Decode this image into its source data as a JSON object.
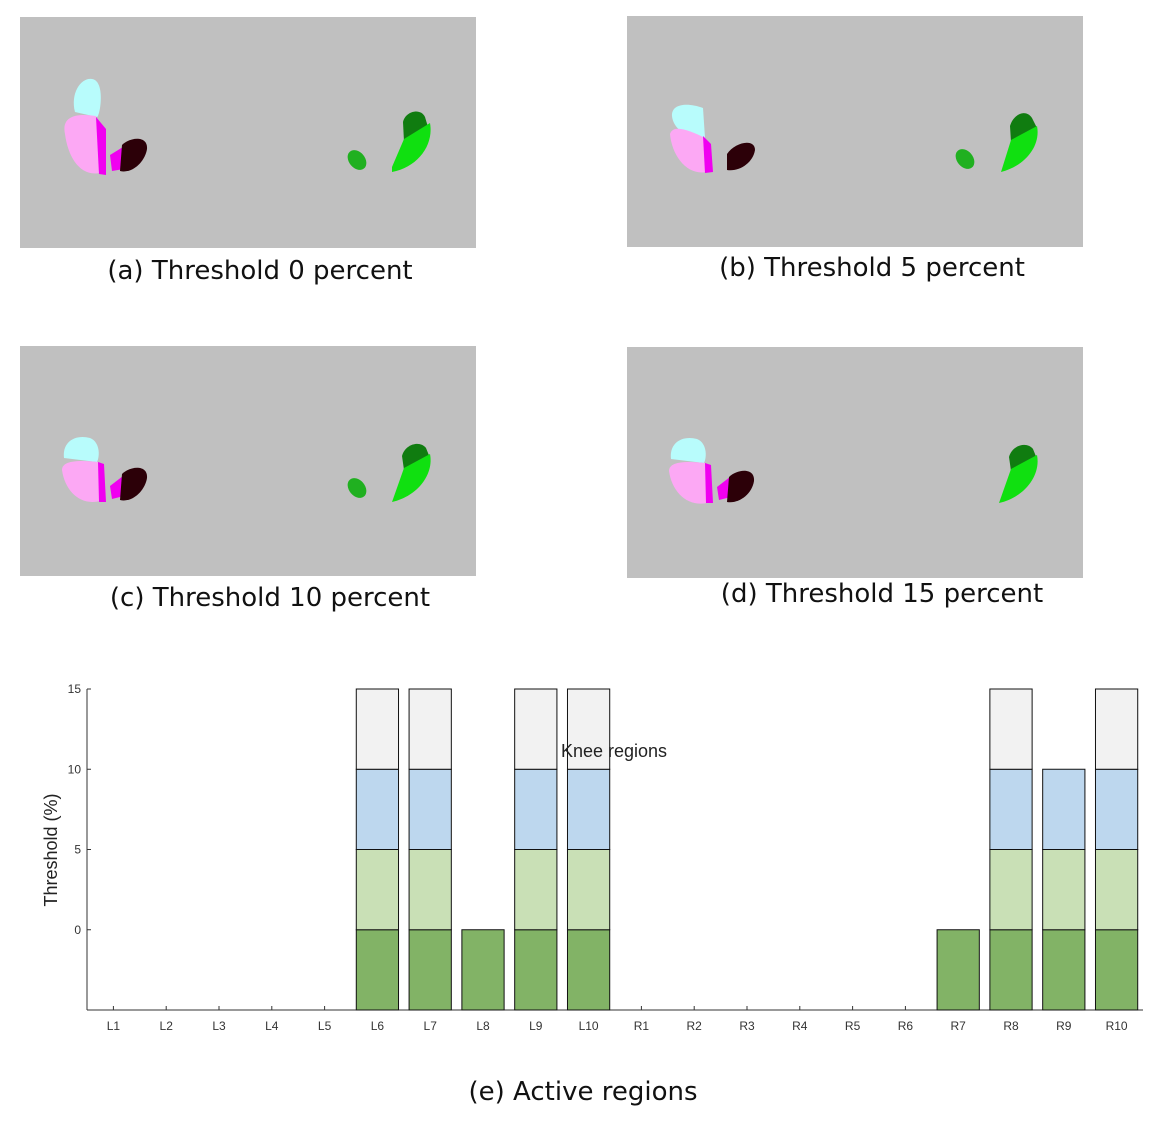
{
  "panels": [
    {
      "caption": "(a) Threshold 0 percent"
    },
    {
      "caption": "(b) Threshold 5 percent"
    },
    {
      "caption": "(c) Threshold 10 percent"
    },
    {
      "caption": "(d) Threshold 15 percent"
    }
  ],
  "colors": {
    "background": "#c0c0c0",
    "cyan": "#b8fcfc",
    "pink": "#fca8f4",
    "magenta": "#f000f0",
    "dark": "#2c0008",
    "green_light": "#20b020",
    "green_dark": "#107c10",
    "green_bright": "#10e010",
    "bar_0": "#82b366",
    "bar_5": "#c9e0b6",
    "bar_10": "#bdd7ee",
    "bar_15": "#f2f2f2"
  },
  "chart_caption": "(e) Active regions",
  "chart_data": {
    "type": "bar",
    "stacked": true,
    "categories": [
      "L1",
      "L2",
      "L3",
      "L4",
      "L5",
      "L6",
      "L7",
      "L8",
      "L9",
      "L10",
      "R1",
      "R2",
      "R3",
      "R4",
      "R5",
      "R6",
      "R7",
      "R8",
      "R9",
      "R10"
    ],
    "ylabel": "Threshold (%)",
    "xlabel": "Knee regions",
    "yticks": [
      "0",
      "5",
      "10",
      "15"
    ],
    "ylim": [
      -5,
      15
    ],
    "active_threshold_max": [
      null,
      null,
      null,
      null,
      null,
      15,
      15,
      0,
      15,
      15,
      null,
      null,
      null,
      null,
      null,
      null,
      0,
      15,
      10,
      15
    ],
    "layers": [
      {
        "threshold": 0,
        "color": "#82b366"
      },
      {
        "threshold": 5,
        "color": "#c9e0b6"
      },
      {
        "threshold": 10,
        "color": "#bdd7ee"
      },
      {
        "threshold": 15,
        "color": "#f2f2f2"
      }
    ]
  }
}
